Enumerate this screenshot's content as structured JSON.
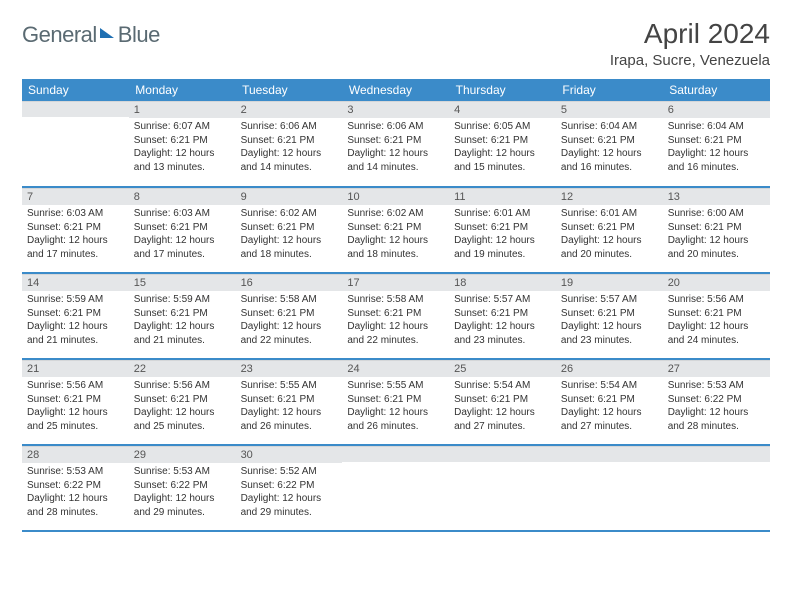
{
  "brand": {
    "word1": "General",
    "word2": "Blue"
  },
  "title": "April 2024",
  "location": "Irapa, Sucre, Venezuela",
  "colors": {
    "header_bg": "#3b8bc9",
    "header_text": "#ffffff",
    "daynum_bg": "#e4e6e8",
    "row_divider": "#3b8bc9",
    "logo_gray": "#5a6a72",
    "logo_blue": "#1f6fb2"
  },
  "day_headers": [
    "Sunday",
    "Monday",
    "Tuesday",
    "Wednesday",
    "Thursday",
    "Friday",
    "Saturday"
  ],
  "weeks": [
    [
      {
        "n": "",
        "lines": []
      },
      {
        "n": "1",
        "lines": [
          "Sunrise: 6:07 AM",
          "Sunset: 6:21 PM",
          "Daylight: 12 hours",
          "and 13 minutes."
        ]
      },
      {
        "n": "2",
        "lines": [
          "Sunrise: 6:06 AM",
          "Sunset: 6:21 PM",
          "Daylight: 12 hours",
          "and 14 minutes."
        ]
      },
      {
        "n": "3",
        "lines": [
          "Sunrise: 6:06 AM",
          "Sunset: 6:21 PM",
          "Daylight: 12 hours",
          "and 14 minutes."
        ]
      },
      {
        "n": "4",
        "lines": [
          "Sunrise: 6:05 AM",
          "Sunset: 6:21 PM",
          "Daylight: 12 hours",
          "and 15 minutes."
        ]
      },
      {
        "n": "5",
        "lines": [
          "Sunrise: 6:04 AM",
          "Sunset: 6:21 PM",
          "Daylight: 12 hours",
          "and 16 minutes."
        ]
      },
      {
        "n": "6",
        "lines": [
          "Sunrise: 6:04 AM",
          "Sunset: 6:21 PM",
          "Daylight: 12 hours",
          "and 16 minutes."
        ]
      }
    ],
    [
      {
        "n": "7",
        "lines": [
          "Sunrise: 6:03 AM",
          "Sunset: 6:21 PM",
          "Daylight: 12 hours",
          "and 17 minutes."
        ]
      },
      {
        "n": "8",
        "lines": [
          "Sunrise: 6:03 AM",
          "Sunset: 6:21 PM",
          "Daylight: 12 hours",
          "and 17 minutes."
        ]
      },
      {
        "n": "9",
        "lines": [
          "Sunrise: 6:02 AM",
          "Sunset: 6:21 PM",
          "Daylight: 12 hours",
          "and 18 minutes."
        ]
      },
      {
        "n": "10",
        "lines": [
          "Sunrise: 6:02 AM",
          "Sunset: 6:21 PM",
          "Daylight: 12 hours",
          "and 18 minutes."
        ]
      },
      {
        "n": "11",
        "lines": [
          "Sunrise: 6:01 AM",
          "Sunset: 6:21 PM",
          "Daylight: 12 hours",
          "and 19 minutes."
        ]
      },
      {
        "n": "12",
        "lines": [
          "Sunrise: 6:01 AM",
          "Sunset: 6:21 PM",
          "Daylight: 12 hours",
          "and 20 minutes."
        ]
      },
      {
        "n": "13",
        "lines": [
          "Sunrise: 6:00 AM",
          "Sunset: 6:21 PM",
          "Daylight: 12 hours",
          "and 20 minutes."
        ]
      }
    ],
    [
      {
        "n": "14",
        "lines": [
          "Sunrise: 5:59 AM",
          "Sunset: 6:21 PM",
          "Daylight: 12 hours",
          "and 21 minutes."
        ]
      },
      {
        "n": "15",
        "lines": [
          "Sunrise: 5:59 AM",
          "Sunset: 6:21 PM",
          "Daylight: 12 hours",
          "and 21 minutes."
        ]
      },
      {
        "n": "16",
        "lines": [
          "Sunrise: 5:58 AM",
          "Sunset: 6:21 PM",
          "Daylight: 12 hours",
          "and 22 minutes."
        ]
      },
      {
        "n": "17",
        "lines": [
          "Sunrise: 5:58 AM",
          "Sunset: 6:21 PM",
          "Daylight: 12 hours",
          "and 22 minutes."
        ]
      },
      {
        "n": "18",
        "lines": [
          "Sunrise: 5:57 AM",
          "Sunset: 6:21 PM",
          "Daylight: 12 hours",
          "and 23 minutes."
        ]
      },
      {
        "n": "19",
        "lines": [
          "Sunrise: 5:57 AM",
          "Sunset: 6:21 PM",
          "Daylight: 12 hours",
          "and 23 minutes."
        ]
      },
      {
        "n": "20",
        "lines": [
          "Sunrise: 5:56 AM",
          "Sunset: 6:21 PM",
          "Daylight: 12 hours",
          "and 24 minutes."
        ]
      }
    ],
    [
      {
        "n": "21",
        "lines": [
          "Sunrise: 5:56 AM",
          "Sunset: 6:21 PM",
          "Daylight: 12 hours",
          "and 25 minutes."
        ]
      },
      {
        "n": "22",
        "lines": [
          "Sunrise: 5:56 AM",
          "Sunset: 6:21 PM",
          "Daylight: 12 hours",
          "and 25 minutes."
        ]
      },
      {
        "n": "23",
        "lines": [
          "Sunrise: 5:55 AM",
          "Sunset: 6:21 PM",
          "Daylight: 12 hours",
          "and 26 minutes."
        ]
      },
      {
        "n": "24",
        "lines": [
          "Sunrise: 5:55 AM",
          "Sunset: 6:21 PM",
          "Daylight: 12 hours",
          "and 26 minutes."
        ]
      },
      {
        "n": "25",
        "lines": [
          "Sunrise: 5:54 AM",
          "Sunset: 6:21 PM",
          "Daylight: 12 hours",
          "and 27 minutes."
        ]
      },
      {
        "n": "26",
        "lines": [
          "Sunrise: 5:54 AM",
          "Sunset: 6:21 PM",
          "Daylight: 12 hours",
          "and 27 minutes."
        ]
      },
      {
        "n": "27",
        "lines": [
          "Sunrise: 5:53 AM",
          "Sunset: 6:22 PM",
          "Daylight: 12 hours",
          "and 28 minutes."
        ]
      }
    ],
    [
      {
        "n": "28",
        "lines": [
          "Sunrise: 5:53 AM",
          "Sunset: 6:22 PM",
          "Daylight: 12 hours",
          "and 28 minutes."
        ]
      },
      {
        "n": "29",
        "lines": [
          "Sunrise: 5:53 AM",
          "Sunset: 6:22 PM",
          "Daylight: 12 hours",
          "and 29 minutes."
        ]
      },
      {
        "n": "30",
        "lines": [
          "Sunrise: 5:52 AM",
          "Sunset: 6:22 PM",
          "Daylight: 12 hours",
          "and 29 minutes."
        ]
      },
      {
        "n": "",
        "lines": []
      },
      {
        "n": "",
        "lines": []
      },
      {
        "n": "",
        "lines": []
      },
      {
        "n": "",
        "lines": []
      }
    ]
  ]
}
